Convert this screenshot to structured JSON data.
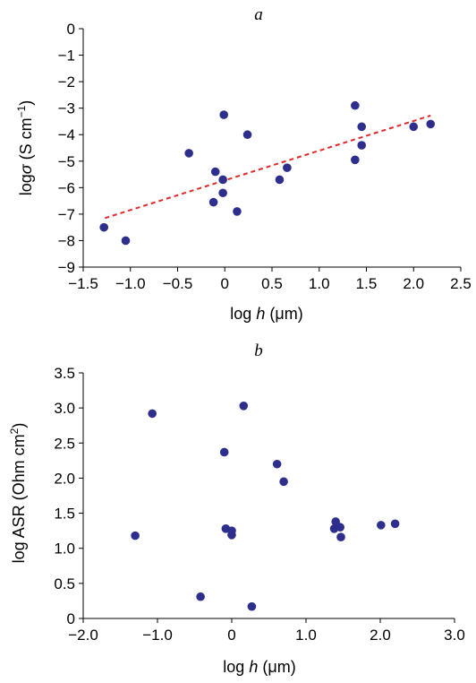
{
  "chart_data": [
    {
      "type": "scatter",
      "panel_label": "a",
      "xlabel_pre": "log ",
      "xlabel_var": "h",
      "xlabel_unit": " (μm)",
      "ylabel_pre": "log",
      "ylabel_var": "σ",
      "ylabel_unit": " (S cm",
      "ylabel_exp": "−1",
      "ylabel_close": ")",
      "xlim": [
        -1.5,
        2.5
      ],
      "ylim": [
        -9,
        0
      ],
      "xticks": [
        -1.5,
        -1.0,
        -0.5,
        0,
        0.5,
        1.0,
        1.5,
        2.0,
        2.5
      ],
      "xtick_labels": [
        "−1.5",
        "−1.0",
        "−0.5",
        "0",
        "0.5",
        "1.0",
        "1.5",
        "2.0",
        "2.5"
      ],
      "yticks": [
        0,
        -1,
        -2,
        -3,
        -4,
        -5,
        -6,
        -7,
        -8,
        -9
      ],
      "ytick_labels": [
        "0",
        "−1",
        "−2",
        "−3",
        "−4",
        "−5",
        "−6",
        "−7",
        "−8",
        "−9"
      ],
      "point_color": "#2e2e8c",
      "fit_color": "#e0282a",
      "fit_line": {
        "x": [
          -1.27,
          2.18
        ],
        "y": [
          -7.15,
          -3.28
        ]
      },
      "points": [
        {
          "x": -1.28,
          "y": -7.5
        },
        {
          "x": -1.05,
          "y": -8.0
        },
        {
          "x": -0.38,
          "y": -4.7
        },
        {
          "x": -0.1,
          "y": -5.4
        },
        {
          "x": -0.12,
          "y": -6.55
        },
        {
          "x": -0.02,
          "y": -5.7
        },
        {
          "x": -0.02,
          "y": -6.2
        },
        {
          "x": -0.01,
          "y": -3.25
        },
        {
          "x": 0.13,
          "y": -6.9
        },
        {
          "x": 0.24,
          "y": -4.0
        },
        {
          "x": 0.58,
          "y": -5.7
        },
        {
          "x": 0.66,
          "y": -5.25
        },
        {
          "x": 1.38,
          "y": -2.9
        },
        {
          "x": 1.38,
          "y": -4.95
        },
        {
          "x": 1.45,
          "y": -3.7
        },
        {
          "x": 1.45,
          "y": -4.4
        },
        {
          "x": 2.0,
          "y": -3.7
        },
        {
          "x": 2.18,
          "y": -3.6
        }
      ]
    },
    {
      "type": "scatter",
      "panel_label": "b",
      "xlabel_pre": "log ",
      "xlabel_var": "h",
      "xlabel_unit": " (μm)",
      "ylabel_pre": "log ASR (Ohm cm",
      "ylabel_exp": "2",
      "ylabel_close": ")",
      "xlim": [
        -2.0,
        3.0
      ],
      "ylim": [
        0,
        3.5
      ],
      "xticks": [
        -2.0,
        -1.0,
        0,
        1.0,
        2.0,
        3.0
      ],
      "xtick_labels": [
        "−2.0",
        "−1.0",
        "0",
        "1.0",
        "2.0",
        "3.0"
      ],
      "yticks": [
        0,
        0.5,
        1.0,
        1.5,
        2.0,
        2.5,
        3.0,
        3.5
      ],
      "ytick_labels": [
        "0",
        "0.5",
        "1.0",
        "1.5",
        "2.0",
        "2.5",
        "3.0",
        "3.5"
      ],
      "point_color": "#2e2e8c",
      "points": [
        {
          "x": -1.3,
          "y": 1.18
        },
        {
          "x": -1.07,
          "y": 2.92
        },
        {
          "x": -0.42,
          "y": 0.31
        },
        {
          "x": -0.1,
          "y": 2.37
        },
        {
          "x": -0.08,
          "y": 1.28
        },
        {
          "x": 0.0,
          "y": 1.25
        },
        {
          "x": 0.0,
          "y": 1.19
        },
        {
          "x": 0.16,
          "y": 3.03
        },
        {
          "x": 0.27,
          "y": 0.17
        },
        {
          "x": 0.61,
          "y": 2.2
        },
        {
          "x": 0.7,
          "y": 1.95
        },
        {
          "x": 1.38,
          "y": 1.28
        },
        {
          "x": 1.4,
          "y": 1.38
        },
        {
          "x": 1.46,
          "y": 1.3
        },
        {
          "x": 1.47,
          "y": 1.16
        },
        {
          "x": 2.01,
          "y": 1.33
        },
        {
          "x": 2.2,
          "y": 1.35
        }
      ]
    }
  ]
}
